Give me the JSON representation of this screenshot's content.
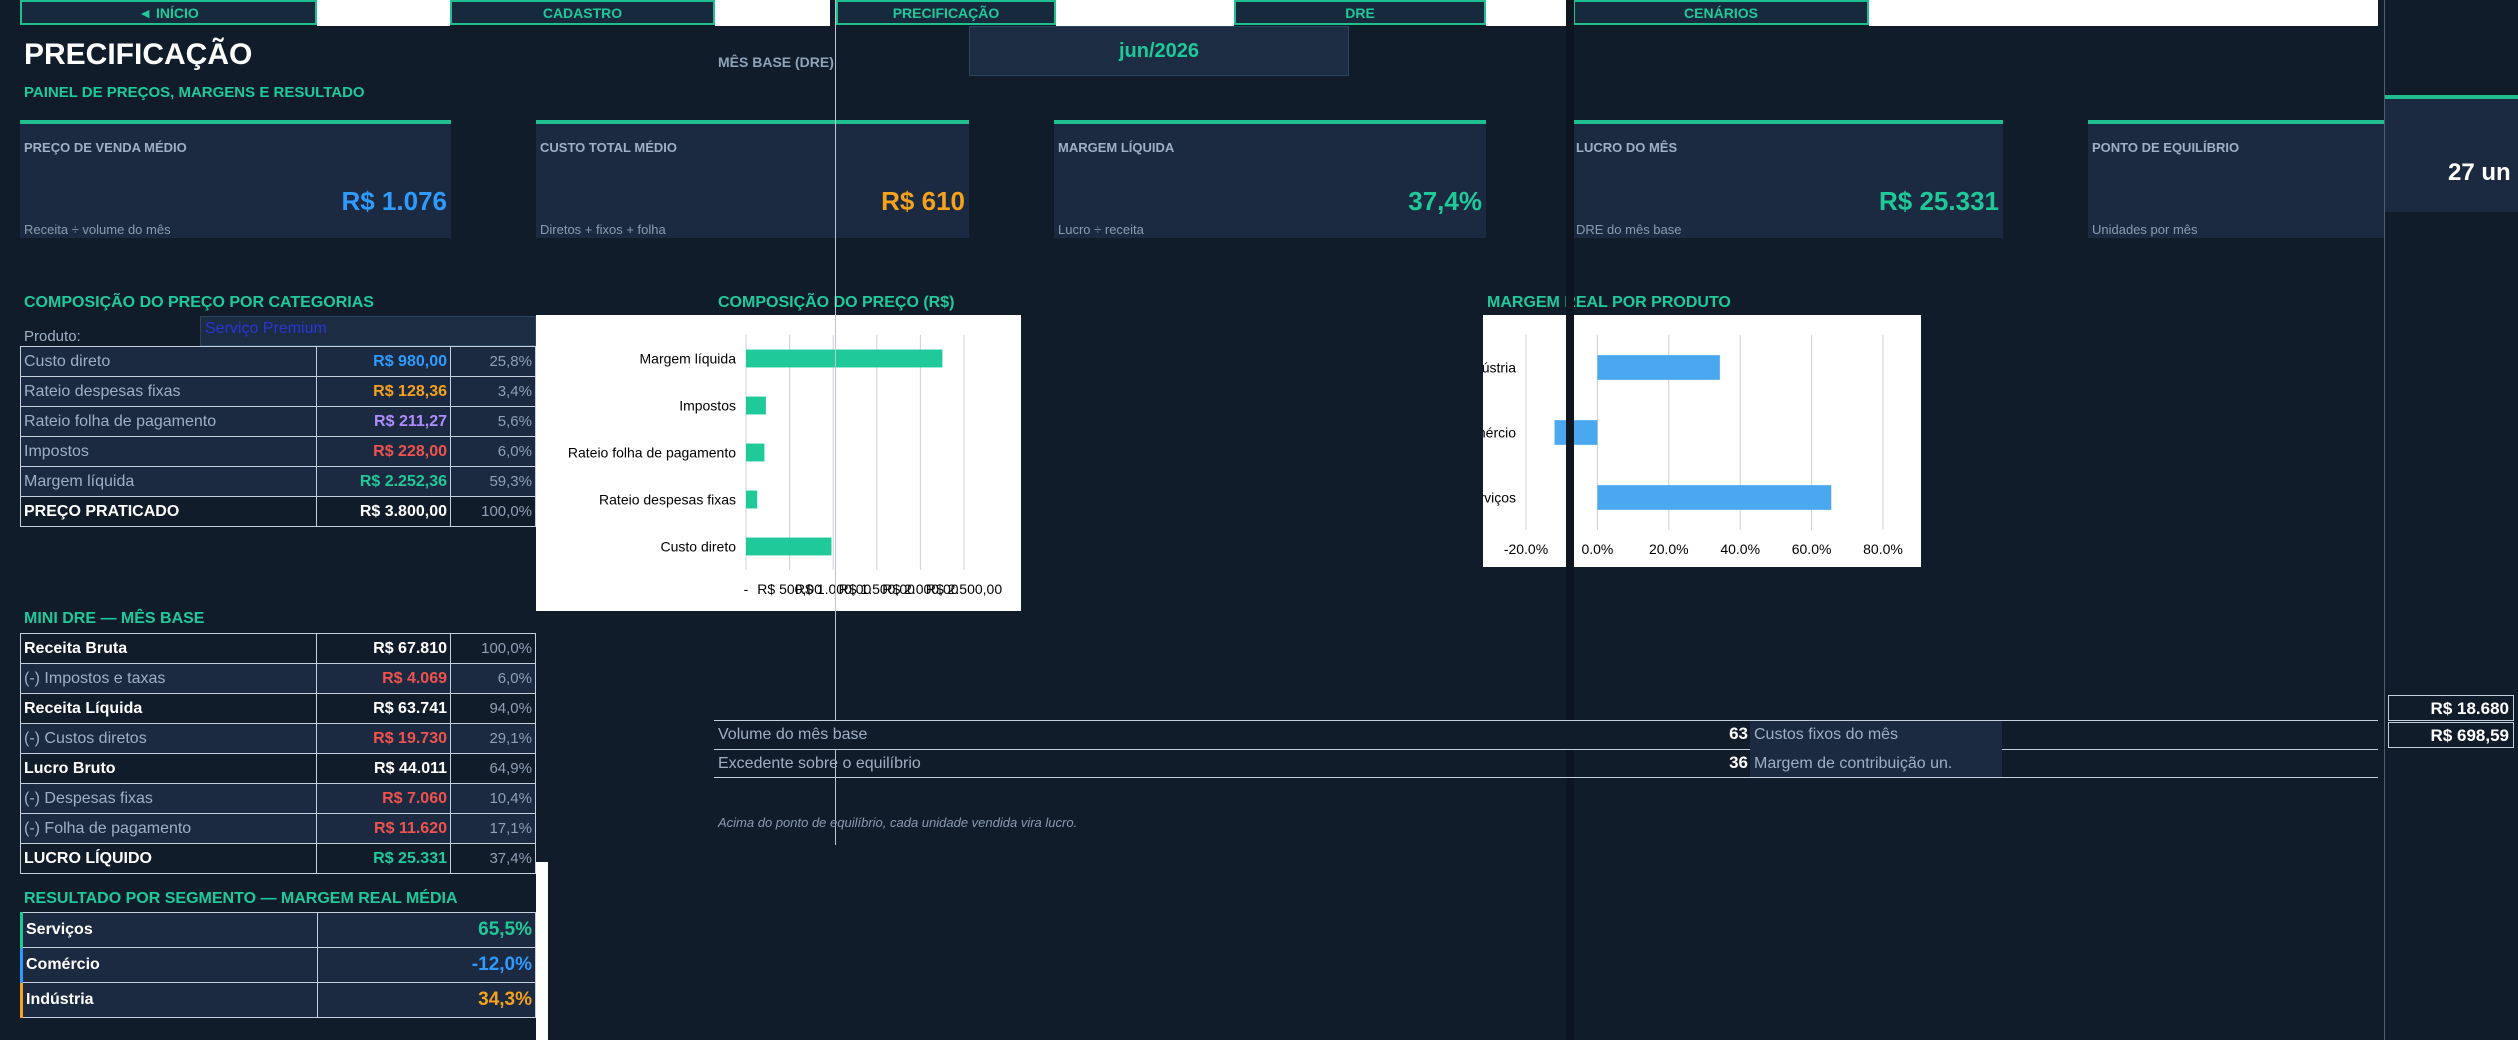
{
  "nav": {
    "inicio": "◄ INÍCIO",
    "cadastro": "CADASTRO",
    "precificacao": "PRECIFICAÇÃO",
    "dre": "DRE",
    "cenarios": "CENÁRIOS"
  },
  "header": {
    "title": "PRECIFICAÇÃO",
    "subtitle": "PAINEL DE PREÇOS, MARGENS E RESULTADO",
    "mes_base_label": "MÊS BASE (DRE)",
    "mes_base_value": "jun/2026"
  },
  "kpis": [
    {
      "label": "PREÇO DE VENDA MÉDIO",
      "value": "R$ 1.076",
      "note": "Receita ÷ volume do mês",
      "color": "#2f9bff"
    },
    {
      "label": "CUSTO TOTAL MÉDIO",
      "value": "R$ 610",
      "note": "Diretos + fixos + folha",
      "color": "#f5a21c"
    },
    {
      "label": "MARGEM LÍQUIDA",
      "value": "37,4%",
      "note": "Lucro ÷ receita",
      "color": "#1fc99a"
    },
    {
      "label": "LUCRO DO MÊS",
      "value": "R$ 25.331",
      "note": "DRE do mês base",
      "color": "#1fc99a"
    },
    {
      "label": "PONTO DE EQUILÍBRIO",
      "value": "27 un",
      "note": "Unidades por mês",
      "color": "#ffffff"
    }
  ],
  "composicao": {
    "title": "COMPOSIÇÃO DO PREÇO POR CATEGORIAS",
    "produto_label": "Produto:",
    "produto_value": "Serviço Premium",
    "rows": [
      {
        "label": "Custo direto",
        "value": "R$ 980,00",
        "pct": "25,8%"
      },
      {
        "label": "Rateio despesas fixas",
        "value": "R$ 128,36",
        "pct": "3,4%"
      },
      {
        "label": "Rateio folha de pagamento",
        "value": "R$ 211,27",
        "pct": "5,6%"
      },
      {
        "label": "Impostos",
        "value": "R$ 228,00",
        "pct": "6,0%"
      },
      {
        "label": "Margem líquida",
        "value": "R$ 2.252,36",
        "pct": "59,3%"
      },
      {
        "label": "PREÇO PRATICADO",
        "value": "R$ 3.800,00",
        "pct": "100,0%"
      }
    ]
  },
  "chart_titles": {
    "composicao_rs": "COMPOSIÇÃO DO PREÇO (R$)",
    "margem_real": "MARGEM REAL POR PRODUTO"
  },
  "chart_data": [
    {
      "type": "bar",
      "orientation": "horizontal",
      "categories": [
        "Margem líquida",
        "Impostos",
        "Rateio folha de pagamento",
        "Rateio despesas fixas",
        "Custo direto"
      ],
      "values": [
        2252.36,
        228.0,
        211.27,
        128.36,
        980.0
      ],
      "color": "#1fc99a",
      "tick_labels": [
        "-",
        "R$ 500,00",
        "R$ 1.000,00",
        "R$ 1.500,00",
        "R$ 2.000,00",
        "R$ 2.500,00"
      ],
      "xlim": [
        0,
        2500
      ],
      "grid": true
    },
    {
      "type": "bar",
      "orientation": "horizontal",
      "categories": [
        "Indústria",
        "Comércio",
        "Serviços"
      ],
      "values": [
        34.3,
        -12.0,
        65.5
      ],
      "color": "#4aa8f0",
      "tick_labels": [
        "-20.0%",
        "0.0%",
        "20.0%",
        "40.0%",
        "60.0%",
        "80.0%"
      ],
      "xlim": [
        -20,
        80
      ],
      "grid": true
    }
  ],
  "mini_dre": {
    "title": "MINI DRE — MÊS BASE",
    "rows": [
      {
        "label": "Receita Bruta",
        "value": "R$ 67.810",
        "pct": "100,0%",
        "style": "total",
        "color": "#ffffff"
      },
      {
        "label": "(-) Impostos e taxas",
        "value": "R$ 4.069",
        "pct": "6,0%",
        "style": "minus",
        "color": "#f0524f"
      },
      {
        "label": "Receita Líquida",
        "value": "R$ 63.741",
        "pct": "94,0%",
        "style": "total",
        "color": "#ffffff"
      },
      {
        "label": "(-) Custos diretos",
        "value": "R$ 19.730",
        "pct": "29,1%",
        "style": "minus",
        "color": "#f0524f"
      },
      {
        "label": "Lucro Bruto",
        "value": "R$ 44.011",
        "pct": "64,9%",
        "style": "total",
        "color": "#ffffff"
      },
      {
        "label": "(-) Despesas fixas",
        "value": "R$ 7.060",
        "pct": "10,4%",
        "style": "minus",
        "color": "#f0524f"
      },
      {
        "label": "(-) Folha de pagamento",
        "value": "R$ 11.620",
        "pct": "17,1%",
        "style": "minus",
        "color": "#f0524f"
      },
      {
        "label": "LUCRO LÍQUIDO",
        "value": "R$ 25.331",
        "pct": "37,4%",
        "style": "total",
        "color": "#1fc99a"
      }
    ]
  },
  "segmentos": {
    "title": "RESULTADO POR SEGMENTO — MARGEM REAL MÉDIA",
    "rows": [
      {
        "label": "Serviços",
        "value": "65,5%",
        "color": "#1fc99a",
        "bar": "#1fc99a"
      },
      {
        "label": "Comércio",
        "value": "-12,0%",
        "color": "#2f9bff",
        "bar": "#2f9bff"
      },
      {
        "label": "Indústria",
        "value": "34,3%",
        "color": "#f5a21c",
        "bar": "#f5a21c"
      }
    ]
  },
  "equilibrio": {
    "volume_label": "Volume do mês base",
    "volume_value": "63",
    "excedente_label": "Excedente sobre o equilíbrio",
    "excedente_value": "36",
    "fixos_label": "Custos fixos do mês",
    "fixos_value": "R$ 18.680",
    "contrib_label": "Margem de contribuição un.",
    "contrib_value": "R$ 698,59",
    "note": "Acima do ponto de equilíbrio, cada unidade vendida vira lucro."
  }
}
